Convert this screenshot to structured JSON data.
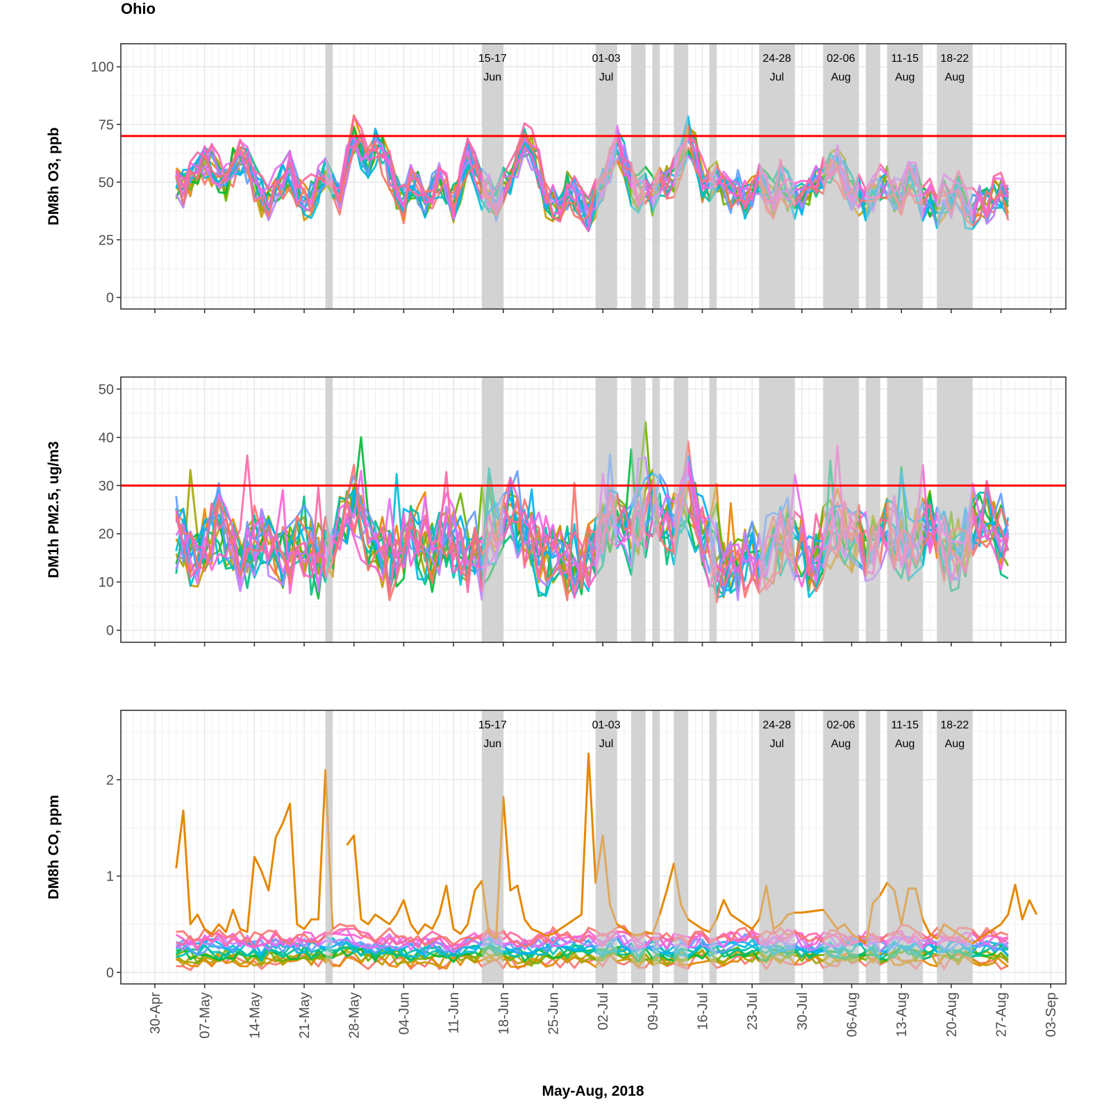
{
  "chart_data": {
    "type": "line",
    "title": "Ohio",
    "xlabel": "May-Aug, 2018",
    "x_domain": [
      "2018-04-26",
      "2018-09-06"
    ],
    "x_ticks": [
      "30-Apr",
      "07-May",
      "14-May",
      "21-May",
      "28-May",
      "04-Jun",
      "11-Jun",
      "18-Jun",
      "25-Jun",
      "02-Jul",
      "09-Jul",
      "16-Jul",
      "23-Jul",
      "30-Jul",
      "06-Aug",
      "13-Aug",
      "20-Aug",
      "27-Aug",
      "03-Sep"
    ],
    "x_tick_dates": [
      "2018-04-30",
      "2018-05-07",
      "2018-05-14",
      "2018-05-21",
      "2018-05-28",
      "2018-06-04",
      "2018-06-11",
      "2018-06-18",
      "2018-06-25",
      "2018-07-02",
      "2018-07-09",
      "2018-07-16",
      "2018-07-23",
      "2018-07-30",
      "2018-08-06",
      "2018-08-13",
      "2018-08-20",
      "2018-08-27",
      "2018-09-03"
    ],
    "series_start": "2018-05-03",
    "series_end": "2018-08-28",
    "highlight_periods": [
      {
        "start": "2018-05-24",
        "end": "2018-05-25"
      },
      {
        "start": "2018-06-15",
        "end": "2018-06-18"
      },
      {
        "start": "2018-07-01",
        "end": "2018-07-04"
      },
      {
        "start": "2018-07-06",
        "end": "2018-07-08"
      },
      {
        "start": "2018-07-09",
        "end": "2018-07-10"
      },
      {
        "start": "2018-07-12",
        "end": "2018-07-14"
      },
      {
        "start": "2018-07-17",
        "end": "2018-07-18"
      },
      {
        "start": "2018-07-24",
        "end": "2018-07-29"
      },
      {
        "start": "2018-08-02",
        "end": "2018-08-07"
      },
      {
        "start": "2018-08-08",
        "end": "2018-08-10"
      },
      {
        "start": "2018-08-11",
        "end": "2018-08-16"
      },
      {
        "start": "2018-08-18",
        "end": "2018-08-23"
      }
    ],
    "annotations": [
      {
        "line1": "15-17",
        "line2": "Jun",
        "date": "2018-06-16"
      },
      {
        "line1": "01-03",
        "line2": "Jul",
        "date": "2018-07-02"
      },
      {
        "line1": "24-28",
        "line2": "Jul",
        "date": "2018-07-26"
      },
      {
        "line1": "02-06",
        "line2": "Aug",
        "date": "2018-08-04"
      },
      {
        "line1": "11-15",
        "line2": "Aug",
        "date": "2018-08-13"
      },
      {
        "line1": "18-22",
        "line2": "Aug",
        "date": "2018-08-20"
      }
    ],
    "series_colors": [
      "#F8766D",
      "#E58700",
      "#C99800",
      "#A3A500",
      "#6BB100",
      "#00BA38",
      "#00BF7D",
      "#00C0AF",
      "#00BCD8",
      "#00B0F6",
      "#619CFF",
      "#B983FF",
      "#E76BF3",
      "#FD61D1",
      "#FF67A4",
      "#F8766D"
    ],
    "panels": [
      {
        "id": "o3",
        "ylabel": "DM8h O3, ppb",
        "ylim": [
          -5,
          110
        ],
        "y_ticks": [
          0,
          25,
          50,
          75,
          100
        ],
        "threshold": 70,
        "show_annotations": true,
        "mean_profile": [
          48,
          47,
          50,
          55,
          58,
          57,
          52,
          48,
          56,
          60,
          57,
          50,
          44,
          40,
          48,
          50,
          55,
          46,
          42,
          44,
          50,
          56,
          48,
          44,
          58,
          70,
          64,
          58,
          66,
          62,
          55,
          45,
          40,
          50,
          48,
          40,
          46,
          52,
          46,
          40,
          50,
          62,
          56,
          48,
          44,
          40,
          48,
          50,
          60,
          68,
          64,
          56,
          44,
          40,
          38,
          46,
          44,
          40,
          36,
          44,
          48,
          56,
          66,
          60,
          50,
          46,
          48,
          44,
          48,
          50,
          52,
          60,
          70,
          62,
          50,
          48,
          52,
          46,
          44,
          48,
          44,
          46,
          50,
          46,
          42,
          50,
          46,
          44,
          42,
          48,
          50,
          52,
          56,
          58,
          52,
          46,
          44,
          40,
          44,
          48,
          50,
          46,
          44,
          52,
          50,
          40,
          42,
          38,
          44,
          42,
          46,
          40,
          38,
          42,
          40,
          44,
          46,
          42,
          40,
          44,
          46,
          44
        ],
        "spread": 8
      },
      {
        "id": "pm25",
        "ylabel": "DM1h PM2.5, ug/m3",
        "ylim": [
          -2.5,
          52.5
        ],
        "y_ticks": [
          0,
          10,
          20,
          30,
          40,
          50
        ],
        "threshold": 30,
        "show_annotations": false,
        "mean_profile": [
          20,
          18,
          16,
          15,
          18,
          20,
          22,
          18,
          16,
          14,
          17,
          19,
          20,
          18,
          16,
          14,
          15,
          18,
          17,
          16,
          14,
          16,
          18,
          20,
          22,
          24,
          22,
          20,
          18,
          16,
          14,
          16,
          18,
          20,
          19,
          17,
          15,
          18,
          20,
          18,
          16,
          14,
          16,
          14,
          18,
          20,
          24,
          26,
          22,
          20,
          18,
          16,
          14,
          16,
          15,
          14,
          13,
          14,
          16,
          18,
          20,
          22,
          24,
          22,
          20,
          22,
          24,
          26,
          24,
          20,
          22,
          26,
          28,
          24,
          20,
          16,
          14,
          12,
          13,
          14,
          15,
          16,
          14,
          15,
          16,
          18,
          20,
          18,
          16,
          14,
          15,
          18,
          20,
          22,
          20,
          18,
          17,
          16,
          18,
          20,
          22,
          20,
          18,
          17,
          19,
          20,
          22,
          20,
          18,
          17,
          16,
          18,
          20,
          22,
          24,
          22,
          20,
          18,
          17,
          16
        ],
        "spread": 7
      },
      {
        "id": "co",
        "ylabel": "DM8h CO, ppm",
        "ylim": [
          -0.12,
          2.72
        ],
        "y_ticks": [
          0,
          1,
          2
        ],
        "y_tick_labels": [
          "0",
          "1",
          "2"
        ],
        "threshold": null,
        "show_annotations": true,
        "mean_profile": [
          0.3,
          0.3,
          0.28,
          0.27,
          0.3,
          0.32,
          0.3,
          0.28,
          0.3,
          0.32,
          0.3,
          0.28,
          0.27,
          0.3,
          0.32,
          0.3,
          0.28,
          0.3,
          0.32,
          0.3,
          0.3,
          0.32,
          0.34,
          0.35,
          0.36,
          0.34,
          0.32,
          0.3,
          0.28,
          0.3,
          0.32,
          0.3,
          0.28,
          0.27,
          0.26,
          0.28,
          0.3,
          0.28,
          0.27,
          0.26,
          0.28,
          0.3,
          0.32,
          0.34,
          0.36,
          0.34,
          0.32,
          0.3,
          0.28,
          0.27,
          0.26,
          0.28,
          0.3,
          0.32,
          0.3,
          0.28,
          0.3,
          0.32,
          0.34,
          0.32,
          0.3,
          0.32,
          0.34,
          0.33,
          0.3,
          0.28,
          0.3,
          0.32,
          0.3,
          0.28,
          0.3,
          0.29,
          0.28,
          0.3,
          0.32,
          0.3,
          0.28,
          0.3,
          0.32,
          0.33,
          0.34,
          0.32,
          0.3,
          0.3,
          0.31,
          0.32,
          0.33,
          0.32,
          0.3,
          0.28,
          0.3,
          0.31,
          0.3,
          0.29,
          0.3,
          0.32,
          0.33,
          0.32,
          0.3,
          0.28,
          0.3,
          0.32,
          0.34,
          0.33,
          0.3,
          0.28,
          0.3,
          0.32,
          0.3,
          0.31,
          0.32,
          0.33,
          0.32,
          0.3,
          0.31,
          0.32,
          0.3,
          0.28
        ],
        "spread": 0.15,
        "highlight_series": {
          "name": "orange-station",
          "color": "#E58700",
          "values": [
            1.08,
            1.68,
            0.5,
            0.6,
            0.45,
            0.4,
            0.5,
            0.42,
            0.65,
            0.45,
            0.42,
            1.2,
            1.05,
            0.85,
            1.4,
            1.55,
            1.75,
            0.5,
            0.45,
            0.55,
            0.55,
            2.1,
            0.45,
            null,
            1.32,
            1.42,
            0.55,
            0.5,
            0.6,
            0.55,
            0.5,
            0.6,
            0.75,
            0.5,
            0.4,
            0.5,
            0.45,
            0.6,
            0.9,
            0.45,
            0.4,
            0.5,
            0.85,
            0.95,
            0.4,
            0.35,
            1.82,
            0.85,
            0.9,
            0.55,
            0.45,
            0.42,
            0.38,
            0.4,
            0.45,
            0.5,
            0.55,
            0.6,
            2.27,
            0.93,
            1.42,
            0.7,
            0.5,
            0.45,
            0.4,
            0.38,
            0.42,
            0.4,
            0.6,
            0.85,
            1.13,
            0.7,
            0.55,
            0.5,
            0.45,
            0.42,
            0.55,
            0.75,
            0.6,
            0.55,
            0.5,
            0.45,
            0.55,
            0.9,
            0.45,
            0.5,
            0.6,
            0.62,
            0.62,
            0.63,
            0.64,
            0.65,
            0.55,
            0.45,
            0.5,
            0.4,
            0.35,
            0.3,
            0.72,
            0.8,
            0.93,
            0.85,
            0.5,
            0.87,
            0.87,
            0.55,
            0.4,
            0.35,
            0.5,
            0.45,
            0.4,
            0.35,
            0.3,
            0.35,
            0.4,
            0.45,
            0.5,
            0.6,
            0.91,
            0.55,
            0.75,
            0.6
          ],
          "start": "2018-05-03"
        }
      }
    ],
    "n_series": 16,
    "seed": 20180503
  }
}
